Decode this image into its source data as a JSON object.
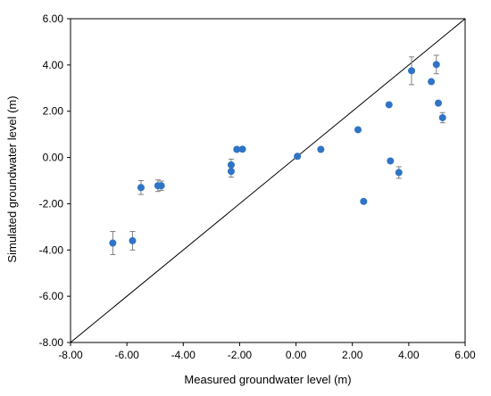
{
  "chart_data": {
    "type": "scatter",
    "title": "",
    "xlabel": "Measured groundwater level (m)",
    "ylabel": "Simulated groundwater level (m)",
    "xlim": [
      -8,
      6
    ],
    "ylim": [
      -8,
      6
    ],
    "x_ticks": [
      "-8.00",
      "-6.00",
      "-4.00",
      "-2.00",
      "0.00",
      "2.00",
      "4.00",
      "6.00"
    ],
    "y_ticks": [
      "-8.00",
      "-6.00",
      "-4.00",
      "-2.00",
      "0.00",
      "2.00",
      "4.00",
      "6.00"
    ],
    "reference_line": {
      "from": [
        -8,
        -8
      ],
      "to": [
        6,
        6
      ]
    },
    "grid": false,
    "marker_color": "#2f74c6",
    "errorbar_color": "#7f7f7f",
    "points": [
      {
        "x": -6.5,
        "y": -3.7,
        "err": 0.5
      },
      {
        "x": -5.8,
        "y": -3.6,
        "err": 0.4
      },
      {
        "x": -5.5,
        "y": -1.3,
        "err": 0.3
      },
      {
        "x": -4.9,
        "y": -1.22,
        "err": 0.25
      },
      {
        "x": -4.78,
        "y": -1.22,
        "err": 0.2
      },
      {
        "x": -2.3,
        "y": -0.32,
        "err": 0.25
      },
      {
        "x": -2.3,
        "y": -0.6,
        "err": 0.25
      },
      {
        "x": -2.1,
        "y": 0.35
      },
      {
        "x": -1.9,
        "y": 0.36
      },
      {
        "x": 0.05,
        "y": 0.05
      },
      {
        "x": 0.88,
        "y": 0.35
      },
      {
        "x": 2.2,
        "y": 1.2
      },
      {
        "x": 2.4,
        "y": -1.9
      },
      {
        "x": 3.3,
        "y": 2.28
      },
      {
        "x": 3.35,
        "y": -0.15
      },
      {
        "x": 3.65,
        "y": -0.65,
        "err": 0.25
      },
      {
        "x": 4.1,
        "y": 3.75,
        "err": 0.6
      },
      {
        "x": 4.8,
        "y": 3.28
      },
      {
        "x": 4.98,
        "y": 4.02,
        "err": 0.4
      },
      {
        "x": 5.05,
        "y": 2.35
      },
      {
        "x": 5.2,
        "y": 1.72,
        "err": 0.22
      }
    ]
  }
}
